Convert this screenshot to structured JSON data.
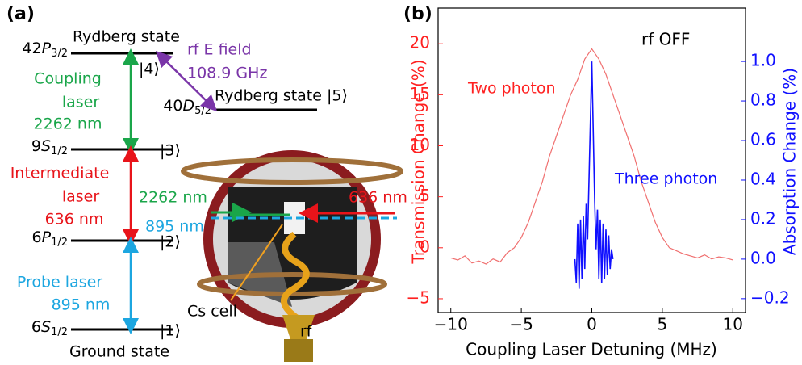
{
  "panel_a": {
    "label": "(a)",
    "levels": [
      {
        "n": "42",
        "l": "P",
        "j": "3/2",
        "ket": "|4⟩",
        "state": "Rydberg state"
      },
      {
        "n": "40",
        "l": "D",
        "j": "5/2",
        "state": "Rydberg state |5⟩"
      },
      {
        "n": "9",
        "l": "S",
        "j": "1/2",
        "ket": "|3⟩"
      },
      {
        "n": "6",
        "l": "P",
        "j": "1/2",
        "ket": "|2⟩"
      },
      {
        "n": "6",
        "l": "S",
        "j": "1/2",
        "ket": "|1⟩",
        "state": "Ground state"
      }
    ],
    "transitions": [
      {
        "lines": [
          "Coupling",
          "laser",
          "2262 nm"
        ]
      },
      {
        "lines": [
          "rf E field",
          "108.9 GHz"
        ]
      },
      {
        "lines": [
          "Intermediate",
          "laser",
          "636 nm"
        ]
      },
      {
        "lines": [
          "Probe laser",
          "895 nm"
        ]
      }
    ],
    "apparatus": {
      "beams": [
        "2262 nm",
        "895 nm",
        "636 nm"
      ],
      "cell": "Cs cell",
      "source": "rf"
    }
  },
  "chart_data": {
    "type": "line",
    "panel_label": "(b)",
    "annotation": "rf OFF",
    "xlabel": "Coupling Laser Detuning (MHz)",
    "ylabel": "Transmission Change (%)",
    "y2label": "Absorption Change (%)",
    "xlim": [
      -10.9,
      10.9
    ],
    "ylim": [
      -6.35,
      23.5
    ],
    "y2lim": [
      -0.27,
      1.27
    ],
    "xticks": [
      {
        "value": -10,
        "label": "−10"
      },
      {
        "value": -5,
        "label": "−5"
      },
      0,
      5,
      10
    ],
    "yticks": [
      {
        "value": -5,
        "label": "−5"
      },
      0,
      5,
      10,
      15,
      20
    ],
    "y2ticks": [
      {
        "value": -0.2,
        "label": "−0.2"
      },
      {
        "value": 0,
        "label": "0.0"
      },
      0.2,
      0.4,
      0.6,
      0.8,
      {
        "value": 1,
        "label": "1.0"
      }
    ],
    "series": [
      {
        "name": "Two photon",
        "color": "#f07070",
        "label_color": "#ff2020",
        "x": [
          -10,
          -9.5,
          -9,
          -8.5,
          -8,
          -7.5,
          -7,
          -6.5,
          -6,
          -5.5,
          -5,
          -4.5,
          -4,
          -3.5,
          -3,
          -2.5,
          -2,
          -1.5,
          -1,
          -0.5,
          0,
          0.5,
          1,
          1.5,
          2,
          2.5,
          3,
          3.5,
          4,
          4.5,
          5,
          5.5,
          6,
          6.5,
          7,
          7.5,
          8,
          8.5,
          9,
          9.5,
          10
        ],
        "values": [
          -1.0,
          -1.2,
          -0.8,
          -1.5,
          -1.3,
          -1.6,
          -1.1,
          -1.4,
          -0.5,
          0.0,
          1.0,
          2.5,
          4.5,
          6.5,
          9.0,
          11.0,
          13.0,
          15.0,
          16.5,
          18.5,
          19.5,
          18.5,
          17.0,
          15.0,
          13.0,
          11.0,
          9.0,
          6.5,
          4.5,
          2.5,
          1.0,
          0.0,
          -0.3,
          -0.6,
          -0.8,
          -1.0,
          -0.7,
          -1.1,
          -0.9,
          -1.0,
          -1.2
        ]
      },
      {
        "name": "Three photon",
        "color": "#1010ff",
        "label_color": "#1010ff",
        "axis": "y2",
        "x": [
          -1.2,
          -1.1,
          -1.0,
          -0.9,
          -0.8,
          -0.7,
          -0.6,
          -0.5,
          -0.4,
          -0.3,
          -0.2,
          -0.1,
          0,
          0.1,
          0.2,
          0.3,
          0.4,
          0.5,
          0.6,
          0.7,
          0.8,
          0.9,
          1.0,
          1.1,
          1.2,
          1.3,
          1.4,
          1.5
        ],
        "values": [
          0.0,
          -0.12,
          0.18,
          -0.15,
          0.2,
          -0.1,
          0.22,
          -0.05,
          0.28,
          0.1,
          0.4,
          0.7,
          1.0,
          0.65,
          0.3,
          0.05,
          0.25,
          -0.1,
          0.2,
          -0.12,
          0.18,
          -0.1,
          0.15,
          -0.08,
          0.12,
          -0.05,
          0.05,
          0.0
        ]
      }
    ]
  }
}
